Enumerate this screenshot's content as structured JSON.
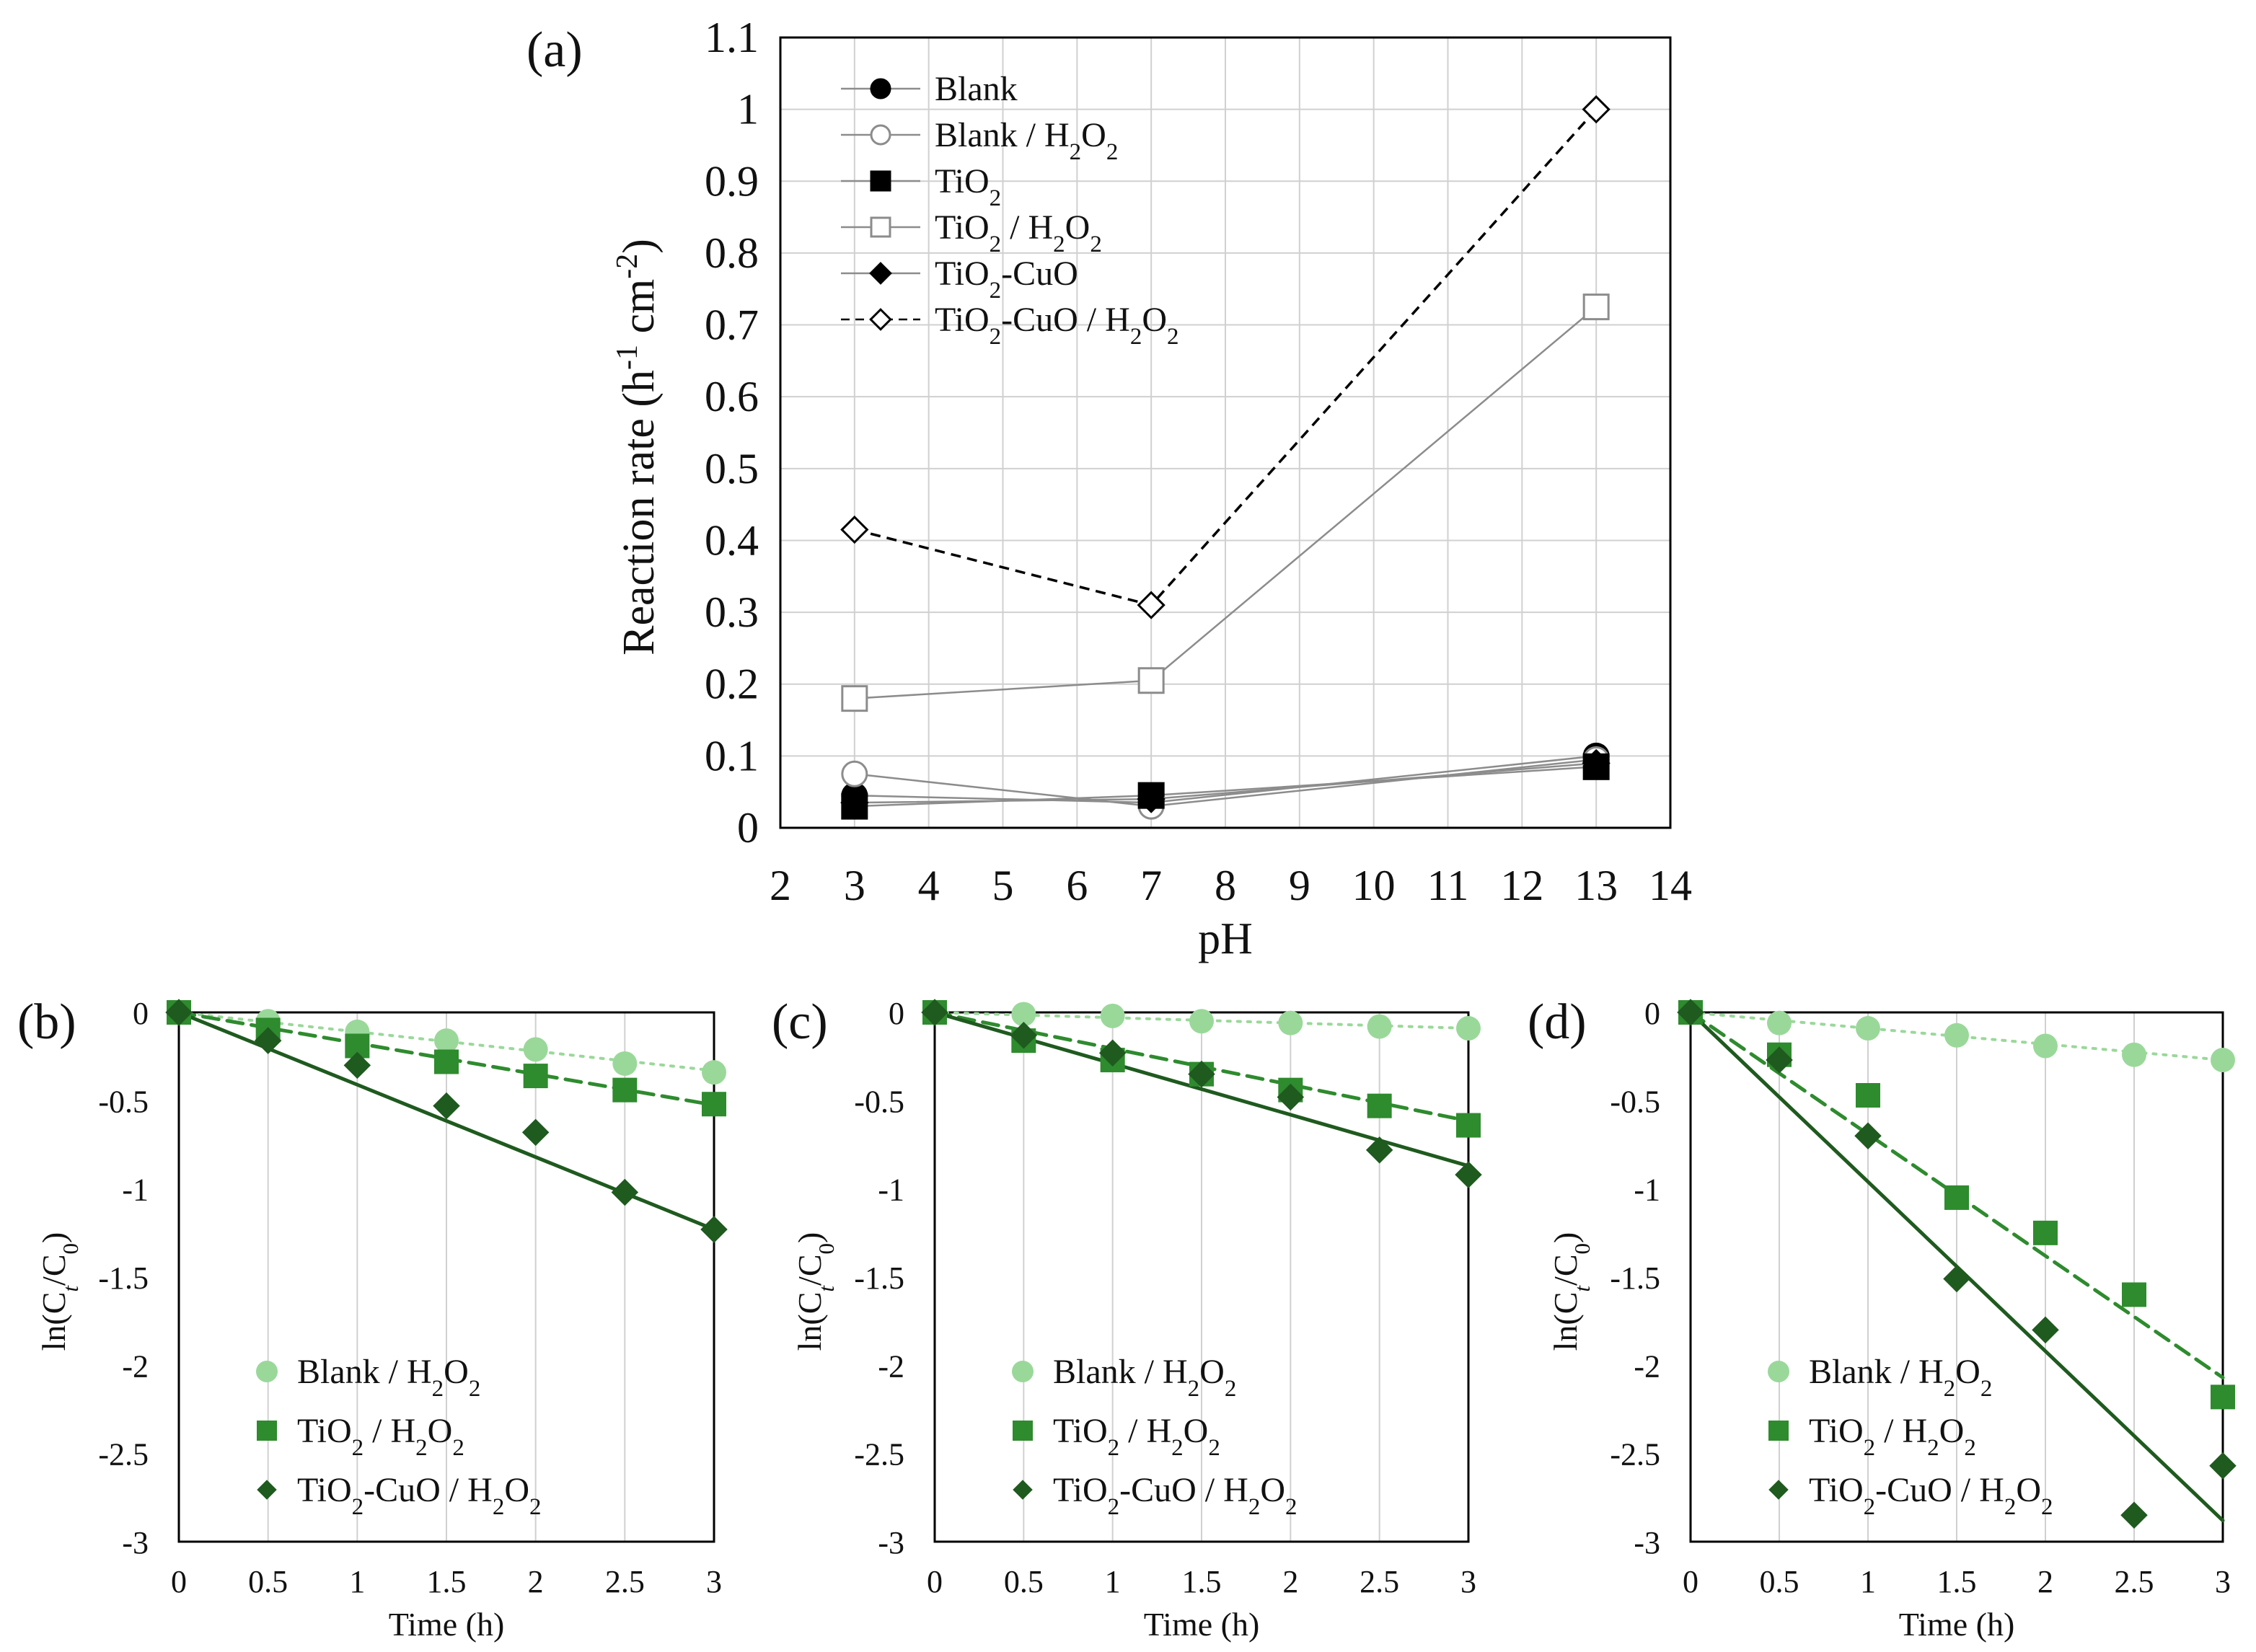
{
  "colors": {
    "light": "#9ad89a",
    "mid": "#2e8b2e",
    "dark": "#1f5a1f",
    "black": "#000000",
    "gray_line": "#8c8c8c"
  },
  "chart_data": [
    {
      "panel": "(a)",
      "type": "line",
      "xlabel": "pH",
      "ylabel": "Reaction rate (h⁻¹ cm⁻²)",
      "xlim": [
        2,
        14
      ],
      "ylim": [
        0,
        1.1
      ],
      "x_ticks": [
        "2",
        "3",
        "4",
        "5",
        "6",
        "7",
        "8",
        "9",
        "10",
        "11",
        "12",
        "13",
        "14"
      ],
      "y_ticks": [
        "0",
        "0.1",
        "0.2",
        "0.3",
        "0.4",
        "0.5",
        "0.6",
        "0.7",
        "0.8",
        "0.9",
        "1",
        "1.1"
      ],
      "grid": "horizontal and vertical",
      "legend_position": "top-left",
      "x": [
        3,
        7,
        13
      ],
      "series": [
        {
          "name": "Blank",
          "values": [
            0.045,
            0.035,
            0.1
          ],
          "marker": "filled-circle",
          "line": "solid-gray"
        },
        {
          "name": "Blank / H₂O₂",
          "values": [
            0.075,
            0.03,
            0.095
          ],
          "marker": "open-circle",
          "line": "solid-gray"
        },
        {
          "name": "TiO₂",
          "values": [
            0.03,
            0.045,
            0.085
          ],
          "marker": "filled-square",
          "line": "solid-gray"
        },
        {
          "name": "TiO₂ / H₂O₂",
          "values": [
            0.18,
            0.205,
            0.725
          ],
          "marker": "open-square",
          "line": "solid-gray"
        },
        {
          "name": "TiO₂-CuO",
          "values": [
            0.035,
            0.04,
            0.09
          ],
          "marker": "filled-diamond",
          "line": "solid-gray"
        },
        {
          "name": "TiO₂-CuO / H₂O₂",
          "values": [
            0.415,
            0.31,
            1.0
          ],
          "marker": "open-diamond",
          "line": "dashed-black"
        }
      ]
    },
    {
      "panel": "(b)",
      "type": "scatter",
      "xlabel": "Time (h)",
      "ylabel": "ln(Cₜ/C₀)",
      "xlim": [
        0,
        3
      ],
      "ylim": [
        -3,
        0
      ],
      "x_ticks": [
        "0",
        "0.5",
        "1",
        "1.5",
        "2",
        "2.5",
        "3"
      ],
      "y_ticks": [
        "0",
        "-0.5",
        "-1",
        "-1.5",
        "-2",
        "-2.5",
        "-3"
      ],
      "grid": "vertical",
      "legend_position": "bottom-left",
      "x": [
        0,
        0.5,
        1,
        1.5,
        2,
        2.5,
        3
      ],
      "series": [
        {
          "name": "Blank / H₂O₂",
          "values": [
            0,
            -0.05,
            -0.11,
            -0.16,
            -0.21,
            -0.29,
            -0.34
          ],
          "marker": "circle",
          "color": "light",
          "fit": "dotted",
          "fit_slope": -0.11
        },
        {
          "name": "TiO₂ / H₂O₂",
          "values": [
            0,
            -0.1,
            -0.19,
            -0.28,
            -0.36,
            -0.44,
            -0.52
          ],
          "marker": "square",
          "color": "mid",
          "fit": "dashed",
          "fit_slope": -0.175
        },
        {
          "name": "TiO₂-CuO / H₂O₂",
          "values": [
            0,
            -0.16,
            -0.3,
            -0.53,
            -0.68,
            -1.02,
            -1.23
          ],
          "marker": "diamond",
          "color": "dark",
          "fit": "solid",
          "fit_slope": -0.41
        }
      ]
    },
    {
      "panel": "(c)",
      "type": "scatter",
      "xlabel": "Time (h)",
      "ylabel": "ln(Cₜ/C₀)",
      "xlim": [
        0,
        3
      ],
      "ylim": [
        -3,
        0
      ],
      "x_ticks": [
        "0",
        "0.5",
        "1",
        "1.5",
        "2",
        "2.5",
        "3"
      ],
      "y_ticks": [
        "0",
        "-0.5",
        "-1",
        "-1.5",
        "-2",
        "-2.5",
        "-3"
      ],
      "grid": "vertical",
      "legend_position": "bottom-left",
      "x": [
        0,
        0.5,
        1,
        1.5,
        2,
        2.5,
        3
      ],
      "series": [
        {
          "name": "Blank / H₂O₂",
          "values": [
            0,
            -0.01,
            -0.02,
            -0.05,
            -0.06,
            -0.08,
            -0.09
          ],
          "marker": "circle",
          "color": "light",
          "fit": "dotted",
          "fit_slope": -0.03
        },
        {
          "name": "TiO₂ / H₂O₂",
          "values": [
            0,
            -0.16,
            -0.27,
            -0.35,
            -0.44,
            -0.53,
            -0.64
          ],
          "marker": "square",
          "color": "mid",
          "fit": "dashed",
          "fit_slope": -0.205
        },
        {
          "name": "TiO₂-CuO / H₂O₂",
          "values": [
            0,
            -0.13,
            -0.23,
            -0.35,
            -0.48,
            -0.78,
            -0.92
          ],
          "marker": "diamond",
          "color": "dark",
          "fit": "solid",
          "fit_slope": -0.29
        }
      ]
    },
    {
      "panel": "(d)",
      "type": "scatter",
      "xlabel": "Time (h)",
      "ylabel": "ln(Cₜ/C₀)",
      "xlim": [
        0,
        3
      ],
      "ylim": [
        -3,
        0
      ],
      "x_ticks": [
        "0",
        "0.5",
        "1",
        "1.5",
        "2",
        "2.5",
        "3"
      ],
      "y_ticks": [
        "0",
        "-0.5",
        "-1",
        "-1.5",
        "-2",
        "-2.5",
        "-3"
      ],
      "grid": "vertical",
      "legend_position": "bottom-left",
      "x": [
        0,
        0.5,
        1,
        1.5,
        2,
        2.5,
        3
      ],
      "series": [
        {
          "name": "Blank / H₂O₂",
          "values": [
            0,
            -0.06,
            -0.09,
            -0.13,
            -0.19,
            -0.24,
            -0.27
          ],
          "marker": "circle",
          "color": "light",
          "fit": "dotted",
          "fit_slope": -0.09
        },
        {
          "name": "TiO₂ / H₂O₂",
          "values": [
            0,
            -0.24,
            -0.47,
            -1.05,
            -1.25,
            -1.6,
            -2.18
          ],
          "marker": "square",
          "color": "mid",
          "fit": "dashed",
          "fit_slope": -0.69
        },
        {
          "name": "TiO₂-CuO / H₂O₂",
          "values": [
            0,
            -0.27,
            -0.7,
            -1.51,
            -1.8,
            -2.85,
            -2.57
          ],
          "marker": "diamond",
          "color": "dark",
          "fit": "solid",
          "fit_slope": -0.96
        }
      ]
    }
  ]
}
